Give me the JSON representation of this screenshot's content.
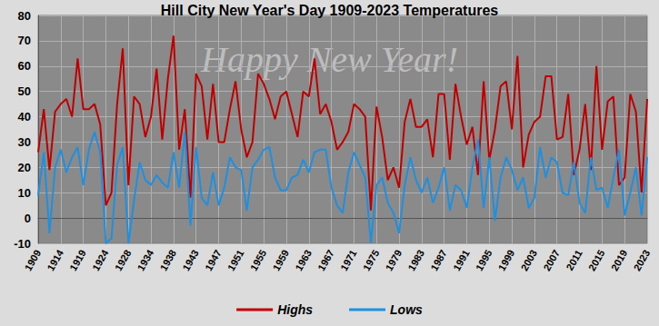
{
  "chart_data": {
    "type": "line",
    "title": "Hill City New Year's Day 1909-2023 Temperatures",
    "annotations": [
      "Happy New Year!"
    ],
    "categories": [
      "1909",
      null,
      null,
      null,
      "1914",
      null,
      null,
      null,
      "1919",
      null,
      null,
      null,
      "1924",
      null,
      null,
      null,
      "1928",
      null,
      null,
      null,
      "1934",
      null,
      null,
      null,
      "1938",
      null,
      null,
      null,
      "1943",
      null,
      null,
      null,
      "1947",
      null,
      null,
      null,
      "1951",
      null,
      null,
      null,
      "1955",
      null,
      null,
      null,
      "1959",
      null,
      null,
      null,
      "1963",
      null,
      null,
      null,
      "1967",
      null,
      null,
      null,
      "1971",
      null,
      null,
      null,
      "1975",
      null,
      null,
      null,
      "1979",
      null,
      null,
      null,
      "1983",
      null,
      null,
      null,
      "1987",
      null,
      null,
      null,
      "1991",
      null,
      null,
      null,
      "1995",
      null,
      null,
      null,
      "1999",
      null,
      null,
      null,
      "2003",
      null,
      null,
      null,
      "2007",
      null,
      null,
      null,
      "2011",
      null,
      null,
      null,
      "2015",
      null,
      null,
      null,
      "2019",
      null,
      null,
      null,
      "2023"
    ],
    "series": [
      {
        "name": "Highs",
        "color": "#c00000",
        "values": [
          26,
          43,
          19,
          42,
          45,
          47,
          40,
          63,
          43,
          43,
          45,
          37,
          5,
          10,
          45,
          67,
          13,
          48,
          45,
          32,
          40,
          59,
          31,
          55,
          72,
          27,
          43,
          8,
          57,
          52,
          31,
          53,
          30,
          30,
          43,
          54,
          35,
          24,
          30,
          57,
          53,
          47,
          39,
          48,
          50,
          41,
          32,
          50,
          48,
          63,
          41,
          45,
          38,
          27,
          30,
          34,
          45,
          43,
          40,
          3,
          44,
          32,
          15,
          20,
          12,
          38,
          47,
          36,
          36,
          39,
          24,
          49,
          49,
          23,
          53,
          40,
          29,
          36,
          17,
          54,
          23,
          35,
          52,
          54,
          35,
          64,
          20,
          33,
          38,
          40,
          56,
          56,
          31,
          32,
          49,
          17,
          27,
          45,
          19,
          60,
          27,
          46,
          48,
          13,
          16,
          49,
          42,
          10,
          47
        ]
      },
      {
        "name": "Lows",
        "color": "#1f8fe0",
        "values": [
          9,
          26,
          -6,
          20,
          27,
          18,
          24,
          28,
          13,
          27,
          34,
          26,
          -10,
          -8,
          21,
          28,
          -10,
          7,
          22,
          15,
          13,
          17,
          14,
          12,
          26,
          12,
          34,
          -3,
          28,
          8,
          5,
          18,
          5,
          12,
          24,
          20,
          19,
          3,
          20,
          23,
          27,
          28,
          16,
          11,
          11,
          16,
          17,
          23,
          18,
          26,
          27,
          27,
          12,
          5,
          2,
          18,
          26,
          21,
          16,
          -10,
          13,
          16,
          6,
          2,
          -6,
          13,
          24,
          15,
          10,
          16,
          6,
          12,
          20,
          3,
          13,
          11,
          4,
          20,
          31,
          4,
          24,
          -1,
          16,
          24,
          19,
          11,
          16,
          4,
          8,
          28,
          16,
          24,
          22,
          10,
          9,
          22,
          6,
          2,
          24,
          11,
          12,
          4,
          16,
          27,
          1,
          10,
          20,
          1,
          24
        ]
      }
    ],
    "ylim": [
      -10,
      80
    ],
    "yticks": [
      -10,
      0,
      10,
      20,
      30,
      40,
      50,
      60,
      70,
      80
    ],
    "grid": true,
    "legend": "bottom"
  }
}
